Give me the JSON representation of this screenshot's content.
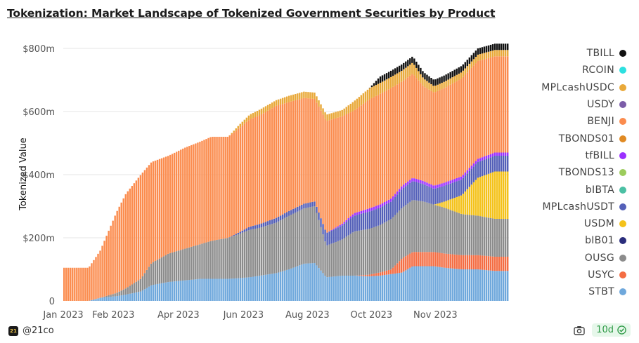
{
  "title": "Tokenization: Market Landscape of Tokenized Government Securities by Product",
  "footer": {
    "brand_logo": "21",
    "brand": "@21co",
    "refresh": "10d"
  },
  "colors": {
    "gridline": "#e6e6e6",
    "axis_text": "#555555"
  },
  "chart_data": {
    "type": "area",
    "stacked": true,
    "title": "Tokenization: Market Landscape of Tokenized Government Securities by Product",
    "xlabel": "",
    "ylabel": "Tokenized Value",
    "ylim": [
      0,
      820
    ],
    "yticks": [
      0,
      200,
      400,
      600,
      800
    ],
    "ytick_labels": [
      "0",
      "$200m",
      "$400m",
      "$600m",
      "$800m"
    ],
    "x_tick_labels": [
      "Jan 2023",
      "Feb 2023",
      "Apr 2023",
      "Jun 2023",
      "Aug 2023",
      "Oct 2023",
      "Nov 2023"
    ],
    "x_tick_dates": [
      "2023-01-01",
      "2023-02-17",
      "2023-04-19",
      "2023-06-19",
      "2023-08-18",
      "2023-10-17",
      "2023-12-16"
    ],
    "x_range": [
      "2023-01-01",
      "2024-02-23"
    ],
    "grid": true,
    "legend_position": "right",
    "x": [
      "2023-01-01",
      "2023-01-10",
      "2023-01-25",
      "2023-02-05",
      "2023-02-20",
      "2023-03-01",
      "2023-03-15",
      "2023-03-25",
      "2023-04-10",
      "2023-04-25",
      "2023-05-10",
      "2023-05-20",
      "2023-06-05",
      "2023-06-15",
      "2023-06-25",
      "2023-07-05",
      "2023-07-20",
      "2023-08-01",
      "2023-08-15",
      "2023-08-25",
      "2023-09-05",
      "2023-09-20",
      "2023-10-01",
      "2023-10-15",
      "2023-10-25",
      "2023-11-05",
      "2023-11-15",
      "2023-11-25",
      "2023-12-05",
      "2023-12-15",
      "2023-12-25",
      "2024-01-10",
      "2024-01-25",
      "2024-02-10",
      "2024-02-23"
    ],
    "series": [
      {
        "name": "STBT",
        "color": "#6fa8dc",
        "values": [
          0,
          0,
          0,
          10,
          15,
          20,
          30,
          50,
          60,
          65,
          70,
          70,
          70,
          72,
          75,
          80,
          88,
          100,
          118,
          120,
          75,
          80,
          80,
          78,
          80,
          85,
          90,
          110,
          110,
          110,
          105,
          100,
          100,
          95,
          95
        ]
      },
      {
        "name": "USYC",
        "color": "#f46d43",
        "values": [
          0,
          0,
          0,
          0,
          0,
          0,
          0,
          0,
          0,
          0,
          0,
          0,
          0,
          0,
          0,
          0,
          0,
          0,
          0,
          0,
          0,
          0,
          0,
          5,
          10,
          15,
          45,
          45,
          45,
          45,
          45,
          45,
          45,
          45,
          45
        ]
      },
      {
        "name": "OUSG",
        "color": "#8c8c8c",
        "values": [
          0,
          0,
          0,
          0,
          10,
          20,
          40,
          70,
          90,
          100,
          110,
          120,
          130,
          140,
          150,
          152,
          160,
          170,
          175,
          180,
          100,
          115,
          140,
          145,
          150,
          160,
          160,
          165,
          160,
          150,
          145,
          130,
          125,
          120,
          120
        ]
      },
      {
        "name": "bIB01",
        "color": "#2a2d7c",
        "values": [
          0,
          0,
          0,
          0,
          0,
          0,
          0,
          0,
          0,
          0,
          0,
          0,
          0,
          0,
          0,
          0,
          0,
          0,
          0,
          0,
          0,
          0,
          0,
          0,
          0,
          0,
          0,
          0,
          0,
          0,
          0,
          0,
          0,
          0,
          0
        ]
      },
      {
        "name": "USDM",
        "color": "#f4c21a",
        "values": [
          0,
          0,
          0,
          0,
          0,
          0,
          0,
          0,
          0,
          0,
          0,
          0,
          0,
          0,
          0,
          0,
          0,
          0,
          0,
          0,
          0,
          0,
          0,
          0,
          0,
          0,
          0,
          0,
          0,
          0,
          20,
          60,
          120,
          150,
          150
        ]
      },
      {
        "name": "MPLcashUSDT",
        "color": "#5460b8",
        "values": [
          0,
          0,
          0,
          0,
          0,
          0,
          0,
          0,
          0,
          0,
          0,
          0,
          0,
          5,
          10,
          12,
          15,
          15,
          15,
          15,
          40,
          45,
          50,
          55,
          55,
          55,
          60,
          60,
          55,
          50,
          50,
          50,
          50,
          50,
          50
        ]
      },
      {
        "name": "bIBTA",
        "color": "#4bc0a4",
        "values": [
          0,
          0,
          0,
          0,
          0,
          0,
          0,
          0,
          0,
          0,
          0,
          0,
          0,
          0,
          0,
          0,
          0,
          0,
          0,
          0,
          0,
          0,
          0,
          0,
          0,
          0,
          0,
          0,
          0,
          0,
          0,
          0,
          0,
          0,
          0
        ]
      },
      {
        "name": "TBONDS13",
        "color": "#9ccc5c",
        "values": [
          0,
          0,
          0,
          0,
          0,
          0,
          0,
          0,
          0,
          0,
          0,
          0,
          0,
          0,
          0,
          0,
          0,
          0,
          0,
          0,
          0,
          0,
          0,
          0,
          0,
          0,
          0,
          0,
          0,
          0,
          0,
          0,
          0,
          0,
          0
        ]
      },
      {
        "name": "tfBILL",
        "color": "#9b30ff",
        "values": [
          0,
          0,
          0,
          0,
          0,
          0,
          0,
          0,
          0,
          0,
          0,
          0,
          0,
          0,
          0,
          0,
          0,
          0,
          0,
          0,
          0,
          5,
          8,
          10,
          10,
          10,
          10,
          10,
          10,
          10,
          10,
          10,
          10,
          10,
          10
        ]
      },
      {
        "name": "TBONDS01",
        "color": "#e08a23",
        "values": [
          0,
          0,
          0,
          0,
          0,
          0,
          0,
          0,
          0,
          0,
          0,
          0,
          0,
          0,
          0,
          0,
          0,
          0,
          0,
          0,
          0,
          0,
          0,
          0,
          0,
          0,
          0,
          0,
          0,
          0,
          0,
          0,
          0,
          0,
          0
        ]
      },
      {
        "name": "BENJI",
        "color": "#fb8c4e",
        "values": [
          105,
          105,
          105,
          150,
          255,
          300,
          330,
          320,
          310,
          320,
          325,
          330,
          320,
          330,
          340,
          345,
          355,
          345,
          335,
          325,
          355,
          340,
          325,
          345,
          350,
          350,
          330,
          330,
          300,
          295,
          300,
          310,
          310,
          305,
          305
        ]
      },
      {
        "name": "USDY",
        "color": "#7b5ca8",
        "values": [
          0,
          0,
          0,
          0,
          0,
          0,
          0,
          0,
          0,
          0,
          0,
          0,
          0,
          0,
          0,
          0,
          0,
          0,
          0,
          0,
          0,
          0,
          0,
          0,
          0,
          0,
          0,
          0,
          0,
          0,
          0,
          0,
          0,
          0,
          0
        ]
      },
      {
        "name": "MPLcashUSDC",
        "color": "#e9a93a",
        "values": [
          0,
          0,
          0,
          0,
          0,
          0,
          0,
          0,
          0,
          0,
          0,
          0,
          0,
          10,
          15,
          18,
          18,
          20,
          20,
          20,
          20,
          20,
          30,
          35,
          35,
          35,
          35,
          35,
          25,
          20,
          20,
          20,
          20,
          20,
          20
        ]
      },
      {
        "name": "RCOIN",
        "color": "#2de0e0",
        "values": [
          0,
          0,
          0,
          0,
          0,
          0,
          0,
          0,
          0,
          0,
          0,
          0,
          0,
          0,
          0,
          0,
          0,
          0,
          0,
          0,
          0,
          0,
          0,
          0,
          0,
          0,
          0,
          0,
          0,
          0,
          0,
          0,
          0,
          0,
          0
        ]
      },
      {
        "name": "TBILL",
        "color": "#111111",
        "values": [
          0,
          0,
          0,
          0,
          0,
          0,
          0,
          0,
          0,
          0,
          0,
          0,
          0,
          0,
          0,
          0,
          0,
          0,
          0,
          0,
          0,
          0,
          0,
          0,
          20,
          20,
          20,
          20,
          20,
          20,
          20,
          20,
          20,
          20,
          20
        ]
      }
    ],
    "legend_order": [
      "TBILL",
      "RCOIN",
      "MPLcashUSDC",
      "USDY",
      "BENJI",
      "TBONDS01",
      "tfBILL",
      "TBONDS13",
      "bIBTA",
      "MPLcashUSDT",
      "USDM",
      "bIB01",
      "OUSG",
      "USYC",
      "STBT"
    ]
  }
}
